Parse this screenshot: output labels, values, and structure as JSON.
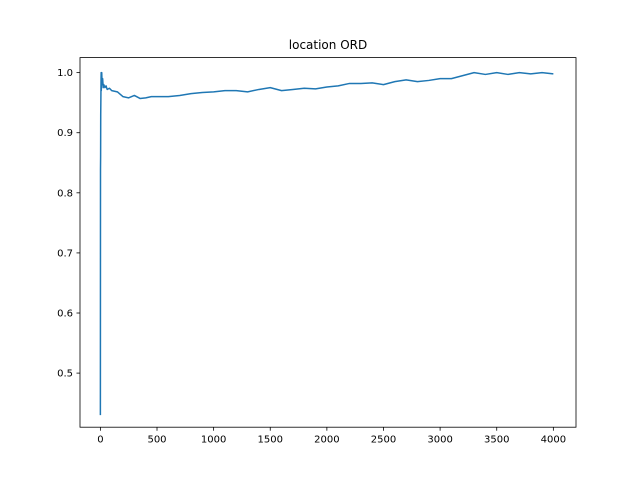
{
  "chart_data": {
    "type": "line",
    "title": "location ORD",
    "xlabel": "",
    "ylabel": "",
    "xlim": [
      -180,
      4200
    ],
    "ylim": [
      0.41,
      1.025
    ],
    "xticks": [
      0,
      500,
      1000,
      1500,
      2000,
      2500,
      3000,
      3500,
      4000
    ],
    "xtick_labels": [
      "0",
      "500",
      "1000",
      "1500",
      "2000",
      "2500",
      "3000",
      "3500",
      "4000"
    ],
    "yticks": [
      0.5,
      0.6,
      0.7,
      0.8,
      0.9,
      1.0
    ],
    "ytick_labels": [
      "0.5",
      "0.6",
      "0.7",
      "0.8",
      "0.9",
      "1.0"
    ],
    "grid": false,
    "legend": "none",
    "line_color": "#1f77b4",
    "series": [
      {
        "x": [
          0,
          1,
          2,
          3,
          4,
          5,
          6,
          7,
          8,
          10,
          12,
          15,
          20,
          25,
          30,
          40,
          50,
          60,
          80,
          100,
          150,
          200,
          250,
          300,
          350,
          400,
          450,
          500,
          600,
          700,
          800,
          900,
          1000,
          1100,
          1200,
          1300,
          1400,
          1500,
          1600,
          1700,
          1800,
          1900,
          2000,
          2100,
          2200,
          2300,
          2400,
          2500,
          2600,
          2700,
          2800,
          2900,
          3000,
          3100,
          3200,
          3300,
          3400,
          3500,
          3600,
          3700,
          3800,
          3900,
          4000
        ],
        "y": [
          0.43,
          0.84,
          0.86,
          0.93,
          0.95,
          0.97,
          0.99,
          1.0,
          0.97,
          0.99,
          1.0,
          0.98,
          0.99,
          0.975,
          0.98,
          0.975,
          0.978,
          0.972,
          0.974,
          0.97,
          0.968,
          0.96,
          0.958,
          0.962,
          0.957,
          0.958,
          0.96,
          0.96,
          0.96,
          0.962,
          0.965,
          0.967,
          0.968,
          0.97,
          0.97,
          0.968,
          0.972,
          0.975,
          0.97,
          0.972,
          0.974,
          0.973,
          0.976,
          0.978,
          0.982,
          0.982,
          0.983,
          0.98,
          0.985,
          0.988,
          0.985,
          0.987,
          0.99,
          0.99,
          0.995,
          1.0,
          0.997,
          1.0,
          0.997,
          1.0,
          0.998,
          1.0,
          0.998
        ]
      }
    ]
  }
}
